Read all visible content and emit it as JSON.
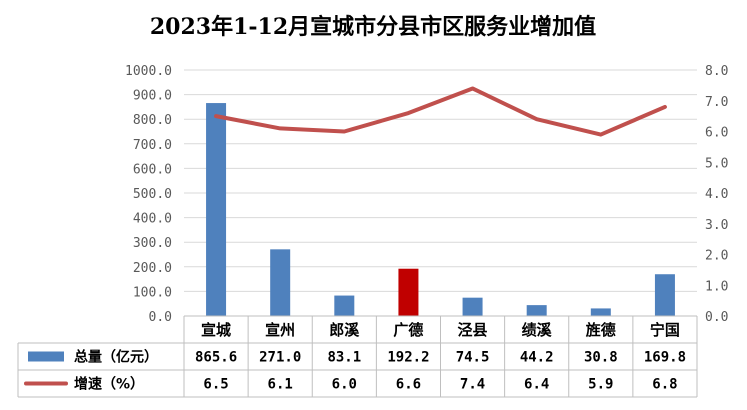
{
  "chart_data": {
    "type": "bar",
    "title": "2023年1-12月宣城市分县市区服务业增加值",
    "categories": [
      "宣城",
      "宣州",
      "郎溪",
      "广德",
      "泾县",
      "绩溪",
      "旌德",
      "宁国"
    ],
    "series": [
      {
        "name": "总量（亿元）",
        "type": "bar",
        "axis": "left",
        "values": [
          865.6,
          271.0,
          83.1,
          192.2,
          74.5,
          44.2,
          30.8,
          169.8
        ],
        "color": "#4f81bd",
        "highlight_index": 3,
        "highlight_color": "#c00000"
      },
      {
        "name": "增速（%）",
        "type": "line",
        "axis": "right",
        "values": [
          6.5,
          6.1,
          6.0,
          6.6,
          7.4,
          6.4,
          5.9,
          6.8
        ],
        "color": "#c0504d"
      }
    ],
    "y_left": {
      "min": 0,
      "max": 1000,
      "step": 100,
      "ticks": [
        "0.0",
        "100.0",
        "200.0",
        "300.0",
        "400.0",
        "500.0",
        "600.0",
        "700.0",
        "800.0",
        "900.0",
        "1000.0"
      ]
    },
    "y_right": {
      "min": 0,
      "max": 8,
      "step": 1,
      "ticks": [
        "0.0",
        "1.0",
        "2.0",
        "3.0",
        "4.0",
        "5.0",
        "6.0",
        "7.0",
        "8.0"
      ]
    },
    "data_table": {
      "rows": [
        {
          "label": "总量（亿元）",
          "cells": [
            "865.6",
            "271.0",
            "83.1",
            "192.2",
            "74.5",
            "44.2",
            "30.8",
            "169.8"
          ]
        },
        {
          "label": "增速（%）",
          "cells": [
            "6.5",
            "6.1",
            "6.0",
            "6.6",
            "7.4",
            "6.4",
            "5.9",
            "6.8"
          ]
        }
      ]
    },
    "grid": true,
    "legend": "data-table"
  }
}
